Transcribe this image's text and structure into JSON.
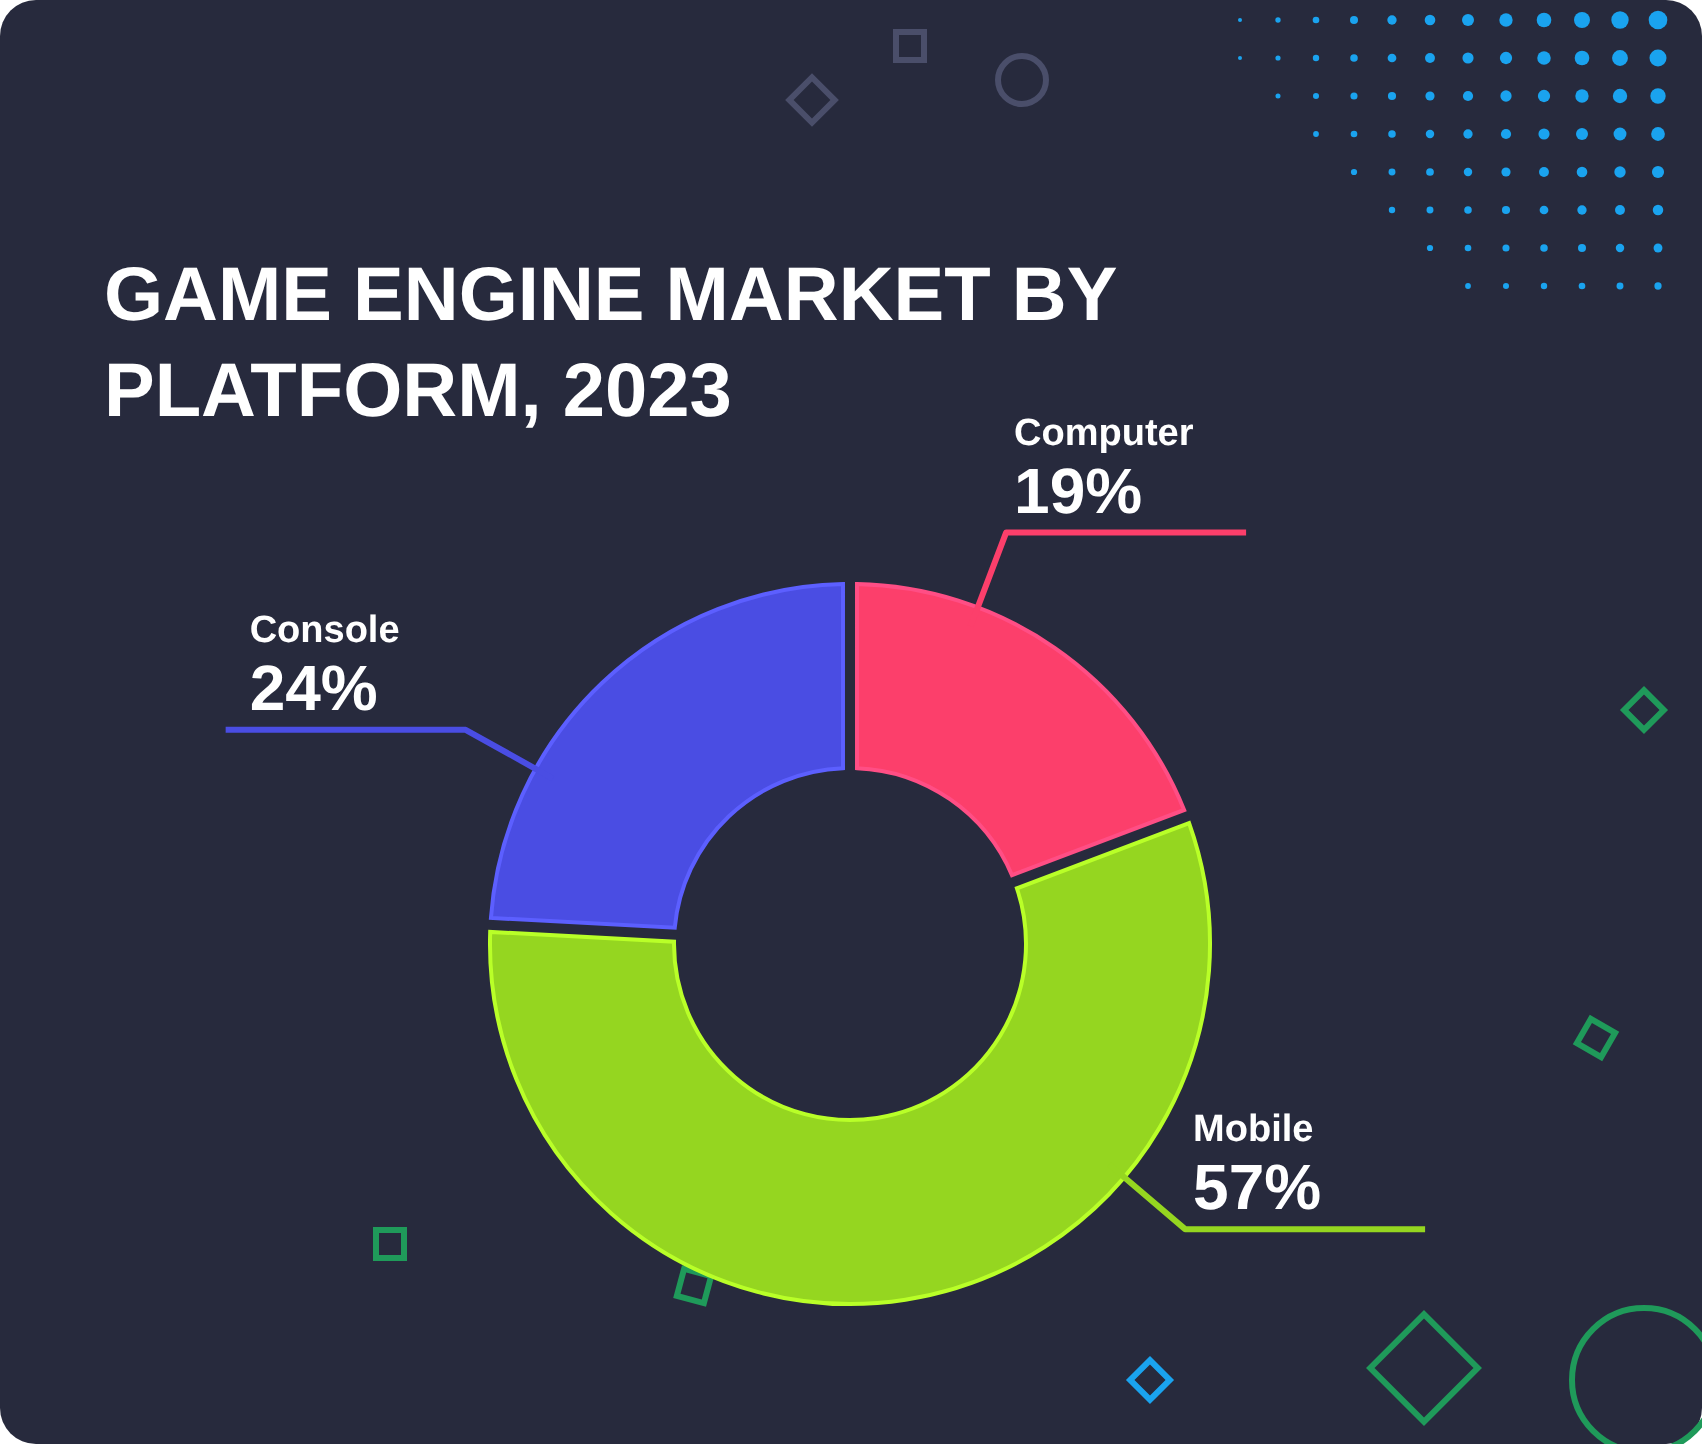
{
  "chart_data": {
    "type": "donut",
    "title": "GAME ENGINE MARKET BY PLATFORM, 2023",
    "categories": [
      "Computer",
      "Mobile",
      "Console"
    ],
    "values": [
      19,
      57,
      24
    ],
    "colors": [
      "#fc3f6b",
      "#95d620",
      "#4a4de3"
    ],
    "value_labels": [
      "19%",
      "57%",
      "24%"
    ]
  }
}
